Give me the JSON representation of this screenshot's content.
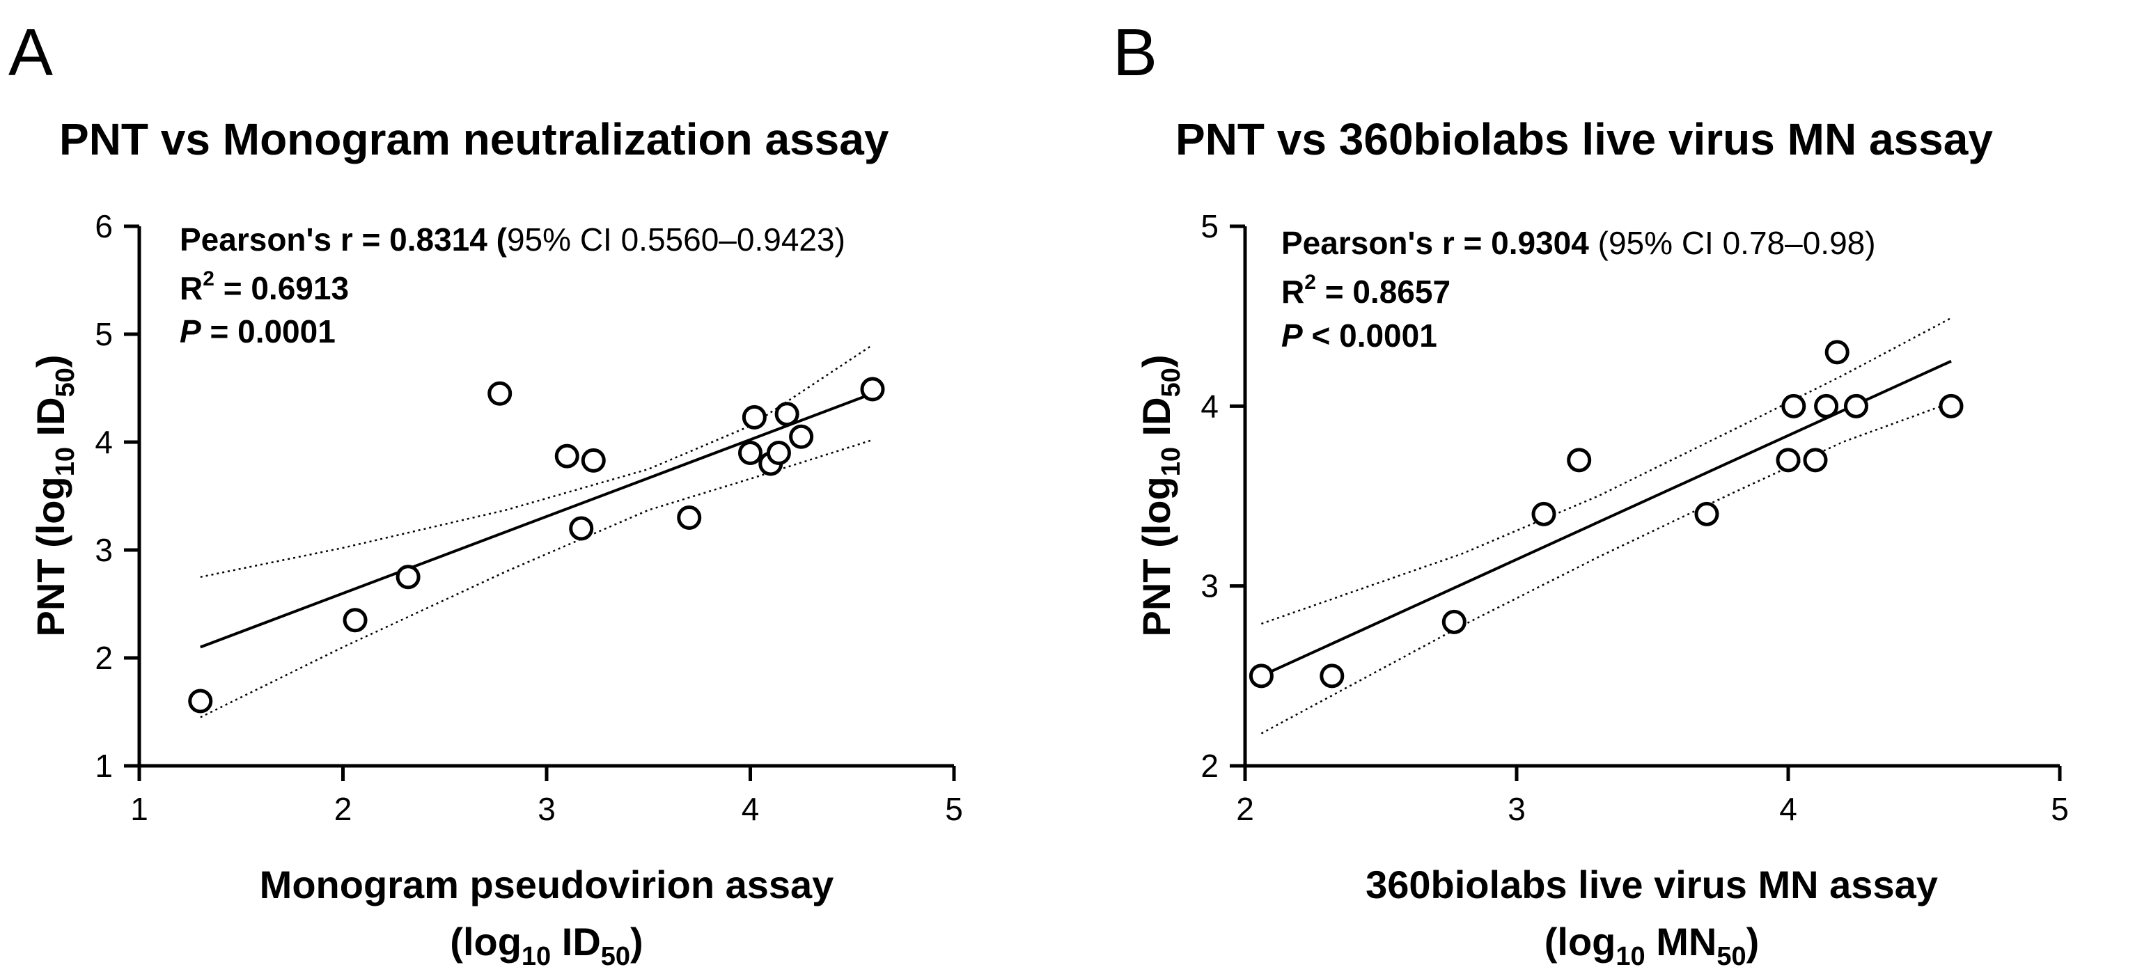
{
  "chart_data": [
    {
      "type": "scatter",
      "panel_letter": "A",
      "title": "PNT vs Monogram neutralization assay",
      "xlabel": {
        "line1": "Monogram pseudovirion assay",
        "line2_main": "(log",
        "line2_sub": "10",
        "line2_mid": " ID",
        "line2_sub2": "50",
        "line2_end": ")"
      },
      "ylabel": {
        "main": "PNT (log",
        "sub": "10",
        "mid": " ID",
        "sub2": "50",
        "end": ")"
      },
      "xlim": [
        1,
        5
      ],
      "ylim": [
        1,
        6
      ],
      "xticks": [
        "1",
        "2",
        "3",
        "4",
        "5"
      ],
      "yticks": [
        "1",
        "2",
        "3",
        "4",
        "5",
        "6"
      ],
      "stats": {
        "pearson_label": "Pearson's r = ",
        "pearson_value": "0.8314",
        "pearson_open": " (",
        "ci": "95% CI 0.5560–0.9423)",
        "r2_label": "R",
        "r2_sup": "2",
        "r2_value": " = 0.6913",
        "p_label": "P",
        "p_value": " = 0.0001"
      },
      "x": [
        1.3,
        2.06,
        2.32,
        2.77,
        3.1,
        3.17,
        3.23,
        3.7,
        4.0,
        4.02,
        4.1,
        4.14,
        4.18,
        4.25,
        4.6
      ],
      "y": [
        1.6,
        2.35,
        2.75,
        4.45,
        3.87,
        3.2,
        3.83,
        3.3,
        3.9,
        4.23,
        3.8,
        3.9,
        4.26,
        4.05,
        4.49
      ],
      "fit": {
        "x": [
          1.3,
          4.6
        ],
        "y": [
          2.1,
          4.45
        ]
      },
      "ci_upper": {
        "x": [
          1.3,
          2.0,
          2.8,
          3.5,
          4.0,
          4.6
        ],
        "y": [
          2.75,
          3.02,
          3.37,
          3.75,
          4.15,
          4.9
        ]
      },
      "ci_lower": {
        "x": [
          1.3,
          2.0,
          2.8,
          3.5,
          4.0,
          4.6
        ],
        "y": [
          1.45,
          2.1,
          2.8,
          3.37,
          3.66,
          4.02
        ]
      }
    },
    {
      "type": "scatter",
      "panel_letter": "B",
      "title": "PNT vs 360biolabs live virus MN assay",
      "xlabel": {
        "line1": "360biolabs live virus MN assay",
        "line2_main": "(log",
        "line2_sub": "10",
        "line2_mid": " MN",
        "line2_sub2": "50",
        "line2_end": ")"
      },
      "ylabel": {
        "main": "PNT (log",
        "sub": "10",
        "mid": " ID",
        "sub2": "50",
        "end": ")"
      },
      "xlim": [
        2,
        5
      ],
      "ylim": [
        2,
        5
      ],
      "xticks": [
        "2",
        "3",
        "4",
        "5"
      ],
      "yticks": [
        "2",
        "3",
        "4",
        "5"
      ],
      "stats": {
        "pearson_label": "Pearson's r = ",
        "pearson_value": "0.9304",
        "pearson_open": " (",
        "ci": "95% CI 0.78–0.98)",
        "r2_label": "R",
        "r2_sup": "2",
        "r2_value": " = 0.8657",
        "p_label": "P",
        "p_value": " < 0.0001"
      },
      "x": [
        2.06,
        2.32,
        2.77,
        3.1,
        3.23,
        3.7,
        4.0,
        4.02,
        4.1,
        4.14,
        4.18,
        4.25,
        4.6
      ],
      "y": [
        2.5,
        2.5,
        2.8,
        3.4,
        3.7,
        3.4,
        3.7,
        4.0,
        3.7,
        4.0,
        4.3,
        4.0,
        4.0
      ],
      "fit": {
        "x": [
          2.06,
          4.6
        ],
        "y": [
          2.5,
          4.25
        ]
      },
      "ci_upper": {
        "x": [
          2.06,
          2.8,
          3.3,
          3.8,
          4.2,
          4.6
        ],
        "y": [
          2.79,
          3.18,
          3.5,
          3.87,
          4.17,
          4.49
        ]
      },
      "ci_lower": {
        "x": [
          2.06,
          2.8,
          3.3,
          3.8,
          4.2,
          4.6
        ],
        "y": [
          2.18,
          2.78,
          3.16,
          3.52,
          3.8,
          4.02
        ]
      }
    }
  ]
}
